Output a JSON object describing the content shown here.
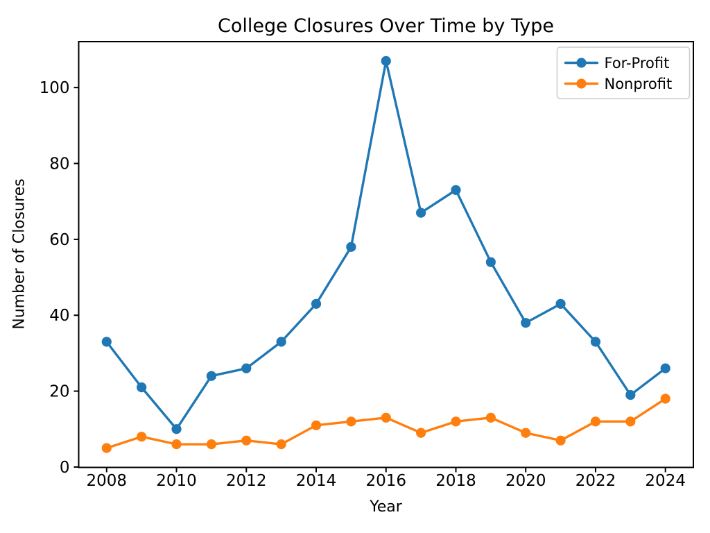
{
  "figure": {
    "background": "#ffffff"
  },
  "chart_data": {
    "type": "line",
    "title": "College Closures Over Time by Type",
    "xlabel": "Year",
    "ylabel": "Number of Closures",
    "x": [
      2008,
      2009,
      2010,
      2011,
      2012,
      2013,
      2014,
      2015,
      2016,
      2017,
      2018,
      2019,
      2020,
      2021,
      2022,
      2023,
      2024
    ],
    "series": [
      {
        "name": "For-Profit",
        "color": "#1f77b4",
        "values": [
          33,
          21,
          10,
          24,
          26,
          33,
          43,
          58,
          107,
          67,
          73,
          54,
          38,
          43,
          33,
          19,
          26
        ]
      },
      {
        "name": "Nonprofit",
        "color": "#ff7f0e",
        "values": [
          5,
          8,
          6,
          6,
          7,
          6,
          11,
          12,
          13,
          9,
          12,
          13,
          9,
          7,
          12,
          12,
          18
        ]
      }
    ],
    "xticks": [
      2008,
      2010,
      2012,
      2014,
      2016,
      2018,
      2020,
      2022,
      2024
    ],
    "yticks": [
      0,
      20,
      40,
      60,
      80,
      100
    ],
    "xlim": [
      2007.2,
      2024.8
    ],
    "ylim": [
      -0.1,
      112.1
    ],
    "grid": false,
    "legend_position": "upper right",
    "marker": "circle",
    "axis_color": "#000000",
    "legend_border_color": "#cccccc"
  }
}
